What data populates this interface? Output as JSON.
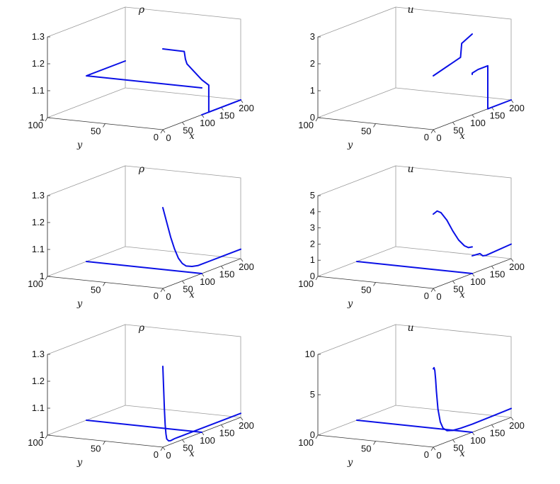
{
  "colors": {
    "line": "#0a10e6",
    "frame": "#9a9a9a"
  },
  "chart_data": [
    {
      "type": "line",
      "title": "ρ",
      "xlabel": "x",
      "ylabel": "y",
      "xlim": [
        0,
        200
      ],
      "ylim": [
        0,
        100
      ],
      "zlim": [
        1,
        1.3
      ],
      "xticks": [
        "0",
        "50",
        "100",
        "150",
        "200"
      ],
      "yticks": [
        "0",
        "50",
        "100"
      ],
      "zticks": [
        "1",
        "1.1",
        "1.2",
        "1.3"
      ],
      "grid": false,
      "series": [
        {
          "x": [
            0,
            55,
            58,
            62,
            100,
            118,
            118
          ],
          "y": [
            0,
            0,
            0,
            0,
            0,
            0,
            0
          ],
          "z": [
            1.3,
            1.26,
            1.23,
            1.21,
            1.13,
            1.1,
            1.0
          ]
        },
        {
          "x": [
            118,
            125,
            200
          ],
          "y": [
            0,
            0,
            0
          ],
          "z": [
            1.0,
            1.0,
            1.0
          ]
        },
        {
          "x": [
            100,
            100,
            200
          ],
          "y": [
            0,
            100,
            100
          ],
          "z": [
            1.1,
            1.1,
            1.1
          ]
        },
        {
          "x": [
            100,
            100,
            200
          ],
          "y": [
            0,
            0,
            0
          ],
          "z": [
            1.0,
            1.0,
            1.0
          ]
        }
      ]
    },
    {
      "type": "line",
      "title": "u",
      "xlabel": "x",
      "ylabel": "y",
      "xlim": [
        0,
        200
      ],
      "ylim": [
        0,
        100
      ],
      "zlim": [
        0,
        3
      ],
      "xticks": [
        "0",
        "50",
        "100",
        "150",
        "200"
      ],
      "yticks": [
        "0",
        "50",
        "100"
      ],
      "zticks": [
        "0",
        "1",
        "2",
        "3"
      ],
      "grid": false,
      "series": [
        {
          "x": [
            0,
            70,
            73,
            100
          ],
          "y": [
            0,
            0,
            0,
            0
          ],
          "z": [
            2.0,
            2.3,
            2.8,
            3.0
          ]
        },
        {
          "x": [
            100,
            100,
            115,
            140,
            140
          ],
          "y": [
            0,
            0,
            0,
            0,
            0
          ],
          "z": [
            1.5,
            1.55,
            1.6,
            1.6,
            0
          ]
        },
        {
          "x": [
            140,
            200
          ],
          "y": [
            0,
            0
          ],
          "z": [
            0,
            0
          ]
        }
      ]
    },
    {
      "type": "line",
      "title": "ρ",
      "xlabel": "x",
      "ylabel": "y",
      "xlim": [
        0,
        200
      ],
      "ylim": [
        0,
        100
      ],
      "zlim": [
        1,
        1.3
      ],
      "xticks": [
        "0",
        "50",
        "100",
        "150",
        "200"
      ],
      "yticks": [
        "0",
        "50",
        "100"
      ],
      "zticks": [
        "1",
        "1.1",
        "1.2",
        "1.3"
      ],
      "grid": false,
      "series": [
        {
          "x": [
            0,
            10,
            20,
            30,
            40,
            50,
            60,
            75,
            90,
            100,
            120,
            150,
            200
          ],
          "y": [
            0,
            0,
            0,
            0,
            0,
            0,
            0,
            0,
            0,
            0,
            0,
            0,
            0
          ],
          "z": [
            1.3,
            1.24,
            1.18,
            1.13,
            1.09,
            1.065,
            1.05,
            1.04,
            1.035,
            1.035,
            1.035,
            1.035,
            1.035
          ]
        },
        {
          "x": [
            100,
            100
          ],
          "y": [
            0,
            100
          ],
          "z": [
            1.0,
            1.0
          ]
        }
      ]
    },
    {
      "type": "line",
      "title": "u",
      "xlabel": "x",
      "ylabel": "y",
      "xlim": [
        0,
        200
      ],
      "ylim": [
        0,
        100
      ],
      "zlim": [
        0,
        5
      ],
      "xticks": [
        "0",
        "50",
        "100",
        "150",
        "200"
      ],
      "yticks": [
        "0",
        "50",
        "100"
      ],
      "zticks": [
        "0",
        "1",
        "2",
        "3",
        "4",
        "5"
      ],
      "grid": false,
      "series": [
        {
          "x": [
            0,
            10,
            20,
            35,
            50,
            65,
            80,
            90,
            100
          ],
          "y": [
            0,
            0,
            0,
            0,
            0,
            0,
            0,
            0,
            0
          ],
          "z": [
            4.6,
            4.7,
            4.5,
            3.9,
            3.1,
            2.4,
            1.9,
            1.7,
            1.65
          ]
        },
        {
          "x": [
            100,
            100,
            120,
            127,
            135,
            200
          ],
          "y": [
            0,
            0,
            0,
            0,
            0,
            0
          ],
          "z": [
            1.1,
            1.1,
            1.05,
            0.85,
            0.8,
            0.9
          ]
        },
        {
          "x": [
            100,
            100
          ],
          "y": [
            0,
            100
          ],
          "z": [
            0,
            0
          ]
        }
      ]
    },
    {
      "type": "line",
      "title": "ρ",
      "xlabel": "x",
      "ylabel": "y",
      "xlim": [
        0,
        200
      ],
      "ylim": [
        0,
        100
      ],
      "zlim": [
        1,
        1.3
      ],
      "xticks": [
        "0",
        "50",
        "100",
        "150",
        "200"
      ],
      "yticks": [
        "0",
        "50",
        "100"
      ],
      "zticks": [
        "1",
        "1.1",
        "1.2",
        "1.3"
      ],
      "grid": false,
      "series": [
        {
          "x": [
            0,
            2,
            4,
            6,
            8,
            10,
            15,
            20,
            30,
            60,
            100,
            150,
            200
          ],
          "y": [
            0,
            0,
            0,
            0,
            0,
            0,
            0,
            0,
            0,
            0,
            0,
            0,
            0
          ],
          "z": [
            1.3,
            1.22,
            1.14,
            1.08,
            1.045,
            1.025,
            1.015,
            1.013,
            1.015,
            1.015,
            1.015,
            1.015,
            1.015
          ]
        },
        {
          "x": [
            100,
            100
          ],
          "y": [
            0,
            100
          ],
          "z": [
            1.0,
            1.0
          ]
        }
      ]
    },
    {
      "type": "line",
      "title": "u",
      "xlabel": "x",
      "ylabel": "y",
      "xlim": [
        0,
        200
      ],
      "ylim": [
        0,
        100
      ],
      "zlim": [
        0,
        10
      ],
      "xticks": [
        "0",
        "50",
        "100",
        "150",
        "200"
      ],
      "yticks": [
        "0",
        "50",
        "100"
      ],
      "zticks": [
        "0",
        "5",
        "10"
      ],
      "grid": false,
      "series": [
        {
          "x": [
            0,
            2,
            4,
            6,
            8,
            12,
            18,
            25,
            35,
            50,
            70,
            100,
            150,
            200
          ],
          "y": [
            0,
            0,
            0,
            0,
            0,
            0,
            0,
            0,
            0,
            0,
            0,
            0,
            0,
            0
          ],
          "z": [
            9.7,
            9.8,
            9.4,
            8.3,
            6.8,
            4.5,
            2.8,
            1.9,
            1.4,
            1.15,
            1.05,
            1.0,
            1.05,
            1.1
          ]
        },
        {
          "x": [
            100,
            100
          ],
          "y": [
            0,
            100
          ],
          "z": [
            0,
            0
          ]
        }
      ]
    }
  ]
}
